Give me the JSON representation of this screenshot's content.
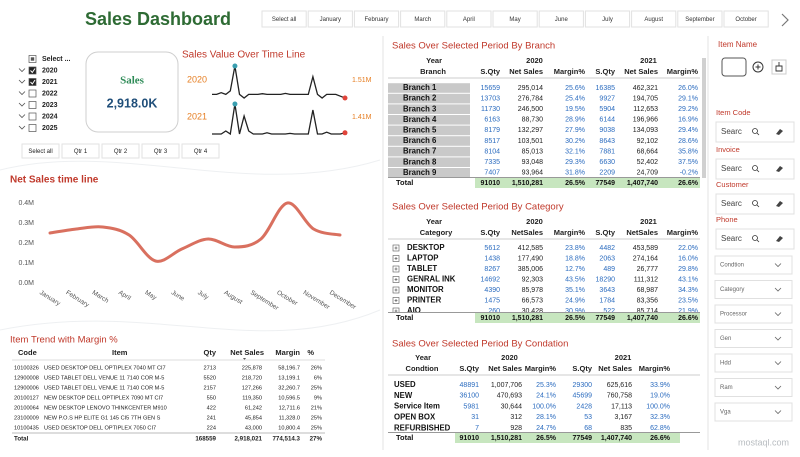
{
  "header": {
    "title": "Sales Dashboard",
    "months": [
      "Select all",
      "January",
      "February",
      "March",
      "April",
      "May",
      "June",
      "July",
      "August",
      "September",
      "October"
    ]
  },
  "year_slicer": {
    "items": [
      "Select ...",
      "2020",
      "2021",
      "2022",
      "2023",
      "2024",
      "2025"
    ],
    "checked": [
      false,
      true,
      true,
      false,
      false,
      false,
      false
    ]
  },
  "sales_card": {
    "label": "Sales",
    "value": "2,918.0K"
  },
  "quarter_slicer": {
    "items": [
      "Select all",
      "Qtr 1",
      "Qtr 2",
      "Qtr 3",
      "Qtr 4"
    ]
  },
  "chart_data": [
    {
      "type": "sparkline",
      "title": "Sales Value Over Time Line",
      "label": "2020",
      "end_label": "1.51M",
      "color": "#222222",
      "values": [
        2,
        2,
        2.5,
        2,
        3,
        10,
        2,
        1,
        2,
        2,
        2,
        2.2,
        2,
        2,
        2,
        2,
        2.3,
        2,
        2,
        2,
        2,
        2,
        7,
        2,
        1,
        2,
        2,
        2,
        1.5,
        1
      ]
    },
    {
      "type": "sparkline",
      "label": "2021",
      "end_label": "1.41M",
      "color": "#222222",
      "values": [
        1,
        1,
        1,
        1.5,
        1,
        6,
        1,
        4,
        1.5,
        1,
        1,
        1,
        1.2,
        1,
        1,
        1,
        1,
        1.1,
        1,
        1,
        1,
        1,
        5,
        1,
        1,
        1.3,
        1,
        1,
        1,
        1.2
      ]
    },
    {
      "type": "line",
      "title": "Net Sales time line",
      "color": "#d9705f",
      "grid": false,
      "categories": [
        "January",
        "February",
        "March",
        "April",
        "May",
        "June",
        "July",
        "August",
        "September",
        "October",
        "November",
        "December"
      ],
      "values": [
        0.25,
        0.27,
        0.28,
        0.24,
        0.11,
        0.17,
        0.22,
        0.18,
        0.22,
        0.4,
        0.27,
        0.24
      ],
      "ylim": [
        0,
        0.45
      ],
      "yticks": [
        {
          "value": 0,
          "label": "0.0M"
        },
        {
          "value": 0.1,
          "label": "0.1M"
        },
        {
          "value": 0.2,
          "label": "0.2M"
        },
        {
          "value": 0.3,
          "label": "0.3M"
        },
        {
          "value": 0.4,
          "label": "0.4M"
        }
      ]
    }
  ],
  "item_trend": {
    "title": "Item Trend with Margin %",
    "columns": [
      "Code",
      "Item",
      "Qty",
      "Net Sales",
      "Margin",
      "%"
    ],
    "rows": [
      [
        "10100326",
        "USED DESKTOP DELL   OPTIPLEX 7040 MT CI7",
        "2713",
        "225,878",
        "58,196.7",
        "26%"
      ],
      [
        "12900008",
        "USED TABLET DELL   VENUE 11 7140 COR M-5",
        "5520",
        "218,720",
        "13,199.1",
        "6%"
      ],
      [
        "12900006",
        "USED TABLET DELL   VENUE 11 7140 COR M-5",
        "2157",
        "127,266",
        "32,260.7",
        "25%"
      ],
      [
        "20100127",
        "NEW DESKTOP DELL   OPTIPLEX 7090 MT CI7",
        "550",
        "119,350",
        "10,596.5",
        "9%"
      ],
      [
        "20100064",
        "NEW DESKTOP LENOVO   THINKCENTER M910",
        "422",
        "61,242",
        "12,711.6",
        "21%"
      ],
      [
        "23100009",
        "NEW P.O.S HP   ELITE G1 145 CI5 7TH GEN S",
        "241",
        "45,854",
        "11,328.0",
        "25%"
      ],
      [
        "10100435",
        "USED DESKTOP DELL   OPTIPLEX 7050 CI7",
        "224",
        "43,000",
        "10,800.4",
        "25%"
      ]
    ],
    "total": [
      "Total",
      "168559",
      "2,918,021",
      "774,514.3",
      "27%"
    ]
  },
  "branch_table": {
    "title": "Sales Over Selected Period By Branch",
    "year_label": "Year",
    "row_label": "Branch",
    "years": [
      "2020",
      "2021"
    ],
    "columns": [
      "S.Qty",
      "Net Sales",
      "Margin%",
      "S.Qty",
      "Net Sales",
      "Margin%"
    ],
    "rows": [
      [
        "Branch 1",
        "15659",
        "295,014",
        "25.6%",
        "16385",
        "462,321",
        "26.0%"
      ],
      [
        "Branch 2",
        "13703",
        "276,784",
        "25.4%",
        "9927",
        "194,705",
        "29.1%"
      ],
      [
        "Branch 3",
        "11730",
        "246,500",
        "19.5%",
        "5904",
        "112,653",
        "29.2%"
      ],
      [
        "Branch 4",
        "6163",
        "88,730",
        "28.9%",
        "6144",
        "196,966",
        "16.9%"
      ],
      [
        "Branch 5",
        "8179",
        "132,297",
        "27.9%",
        "9038",
        "134,093",
        "29.4%"
      ],
      [
        "Branch 6",
        "8517",
        "103,501",
        "30.2%",
        "8643",
        "92,102",
        "28.6%"
      ],
      [
        "Branch 7",
        "8104",
        "85,013",
        "32.1%",
        "7881",
        "68,664",
        "35.8%"
      ],
      [
        "Branch 8",
        "7335",
        "93,048",
        "29.3%",
        "6630",
        "52,402",
        "37.5%"
      ],
      [
        "Branch 9",
        "7407",
        "93,964",
        "31.8%",
        "2209",
        "24,709",
        "-0.2%"
      ]
    ],
    "total": [
      "Total",
      "91010",
      "1,510,281",
      "26.5%",
      "77549",
      "1,407,740",
      "26.6%"
    ]
  },
  "category_table": {
    "title": "Sales Over Selected Period By Category",
    "year_label": "Year",
    "row_label": "Category",
    "years": [
      "2020",
      "2021"
    ],
    "columns": [
      "S.Qty",
      "NetSales",
      "Margin%",
      "S.Qty",
      "NetSales",
      "Margin%"
    ],
    "rows": [
      [
        "DESKTOP",
        "5612",
        "412,585",
        "23.8%",
        "4482",
        "453,589",
        "22.0%"
      ],
      [
        "LAPTOP",
        "1438",
        "177,490",
        "18.8%",
        "2063",
        "274,164",
        "16.0%"
      ],
      [
        "TABLET",
        "8267",
        "385,006",
        "12.7%",
        "489",
        "26,777",
        "29.8%"
      ],
      [
        "GENRAL INK",
        "14692",
        "92,303",
        "43.5%",
        "18290",
        "111,312",
        "43.1%"
      ],
      [
        "MONITOR",
        "4390",
        "85,978",
        "35.1%",
        "3643",
        "68,987",
        "34.3%"
      ],
      [
        "PRINTER",
        "1475",
        "66,573",
        "24.9%",
        "1784",
        "83,356",
        "23.5%"
      ],
      [
        "AIO",
        "260",
        "30,428",
        "30.9%",
        "522",
        "85,714",
        "21.9%"
      ]
    ],
    "total": [
      "Total",
      "91010",
      "1,510,281",
      "26.5%",
      "77549",
      "1,407,740",
      "26.6%"
    ]
  },
  "condition_table": {
    "title": "Sales Over Selected Period By Condation",
    "year_label": "Year",
    "row_label": "Condtion",
    "years": [
      "2020",
      "2021"
    ],
    "columns": [
      "S.Qty",
      "Net Sales",
      "Margin%",
      "S.Qty",
      "Net Sales",
      "Margin%"
    ],
    "rows": [
      [
        "USED",
        "48891",
        "1,007,706",
        "25.3%",
        "29300",
        "625,616",
        "33.9%"
      ],
      [
        "NEW",
        "36100",
        "470,693",
        "24.1%",
        "45699",
        "760,758",
        "19.0%"
      ],
      [
        "Service Item",
        "5981",
        "30,644",
        "100.0%",
        "2428",
        "17,113",
        "100.0%"
      ],
      [
        "OPEN BOX",
        "31",
        "312",
        "28.1%",
        "53",
        "3,167",
        "32.3%"
      ],
      [
        "REFURBISHED",
        "7",
        "928",
        "24.7%",
        "68",
        "835",
        "62.8%"
      ]
    ],
    "total": [
      "Total",
      "91010",
      "1,510,281",
      "26.5%",
      "77549",
      "1,407,740",
      "26.6%"
    ]
  },
  "filters": {
    "item_name": "Item Name",
    "fields": [
      {
        "label": "Item Code",
        "placeholder": "Searc"
      },
      {
        "label": "Invoice",
        "placeholder": "Searc"
      },
      {
        "label": "Customer",
        "placeholder": "Searc"
      },
      {
        "label": "Phone",
        "placeholder": "Searc"
      }
    ],
    "dropdowns": [
      "Condtion",
      "Category",
      "Processor",
      "Gen",
      "Hdd",
      "Ram",
      "Vga"
    ]
  },
  "watermark": "mostaql.com"
}
